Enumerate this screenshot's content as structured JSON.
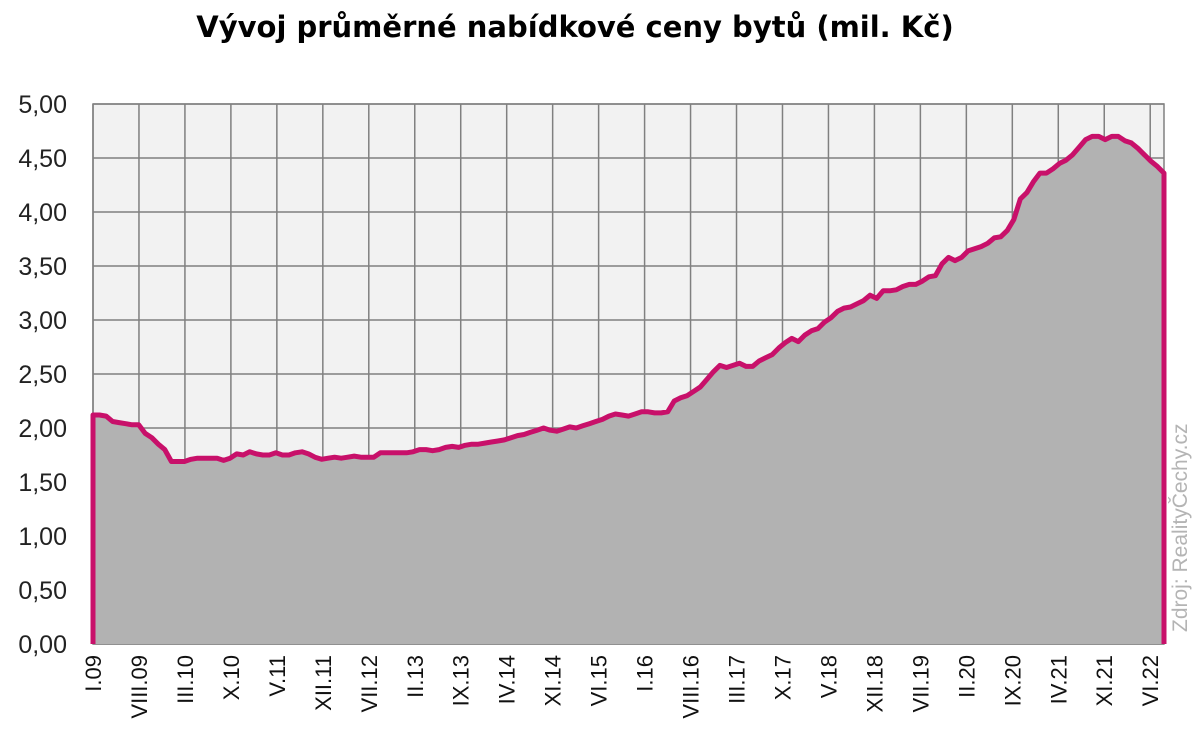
{
  "chart_data": {
    "type": "area",
    "title": "Vývoj průměrné nabídkové ceny bytů (mil. Kč)",
    "source": "Zdroj: RealityČechy.cz",
    "ylim": [
      0,
      5
    ],
    "y_tick_labels": [
      "0,00",
      "0,50",
      "1,00",
      "1,50",
      "2,00",
      "2,50",
      "3,00",
      "3,50",
      "4,00",
      "4,50",
      "5,00"
    ],
    "x_tick_labels": [
      "I.09",
      "VIII.09",
      "III.10",
      "X.10",
      "V.11",
      "XII.11",
      "VII.12",
      "II.13",
      "IX.13",
      "IV.14",
      "XI.14",
      "VI.15",
      "I.16",
      "VIII.16",
      "III.17",
      "X.17",
      "V.18",
      "XII.18",
      "VII.19",
      "II.20",
      "IX.20",
      "IV.21",
      "XI.21",
      "VI.22"
    ],
    "x_start": "I.09",
    "x_end": "XII.22",
    "grid": true,
    "colors": {
      "line": "#c8106a",
      "fill": "#b2b2b2",
      "plot_bg": "#f2f2f2",
      "grid": "#808080"
    },
    "series": [
      {
        "values": [
          2.12,
          2.12,
          2.11,
          2.06,
          2.05,
          2.04,
          2.03,
          2.03,
          1.95,
          1.91,
          1.85,
          1.8,
          1.69,
          1.69,
          1.69,
          1.71,
          1.72,
          1.72,
          1.72,
          1.72,
          1.7,
          1.72,
          1.76,
          1.75,
          1.78,
          1.76,
          1.75,
          1.75,
          1.77,
          1.75,
          1.75,
          1.77,
          1.78,
          1.76,
          1.73,
          1.71,
          1.72,
          1.73,
          1.72,
          1.73,
          1.74,
          1.73,
          1.73,
          1.73,
          1.77,
          1.77,
          1.77,
          1.77,
          1.77,
          1.78,
          1.8,
          1.8,
          1.79,
          1.8,
          1.82,
          1.83,
          1.82,
          1.84,
          1.85,
          1.85,
          1.86,
          1.87,
          1.88,
          1.89,
          1.91,
          1.93,
          1.94,
          1.96,
          1.98,
          2.0,
          1.98,
          1.97,
          1.99,
          2.01,
          2.0,
          2.02,
          2.04,
          2.06,
          2.08,
          2.11,
          2.13,
          2.12,
          2.11,
          2.13,
          2.15,
          2.15,
          2.14,
          2.14,
          2.15,
          2.25,
          2.28,
          2.3,
          2.34,
          2.38,
          2.45,
          2.52,
          2.58,
          2.56,
          2.58,
          2.6,
          2.57,
          2.57,
          2.62,
          2.65,
          2.68,
          2.74,
          2.79,
          2.83,
          2.8,
          2.86,
          2.9,
          2.92,
          2.98,
          3.02,
          3.08,
          3.11,
          3.12,
          3.15,
          3.18,
          3.23,
          3.2,
          3.27,
          3.27,
          3.28,
          3.31,
          3.33,
          3.33,
          3.36,
          3.4,
          3.41,
          3.52,
          3.58,
          3.55,
          3.58,
          3.64,
          3.66,
          3.68,
          3.71,
          3.76,
          3.77,
          3.83,
          3.93,
          4.12,
          4.18,
          4.28,
          4.36,
          4.36,
          4.4,
          4.45,
          4.48,
          4.53,
          4.6,
          4.67,
          4.7,
          4.7,
          4.67,
          4.7,
          4.7,
          4.66,
          4.64,
          4.59,
          4.53,
          4.47,
          4.42,
          4.36
        ]
      }
    ]
  }
}
